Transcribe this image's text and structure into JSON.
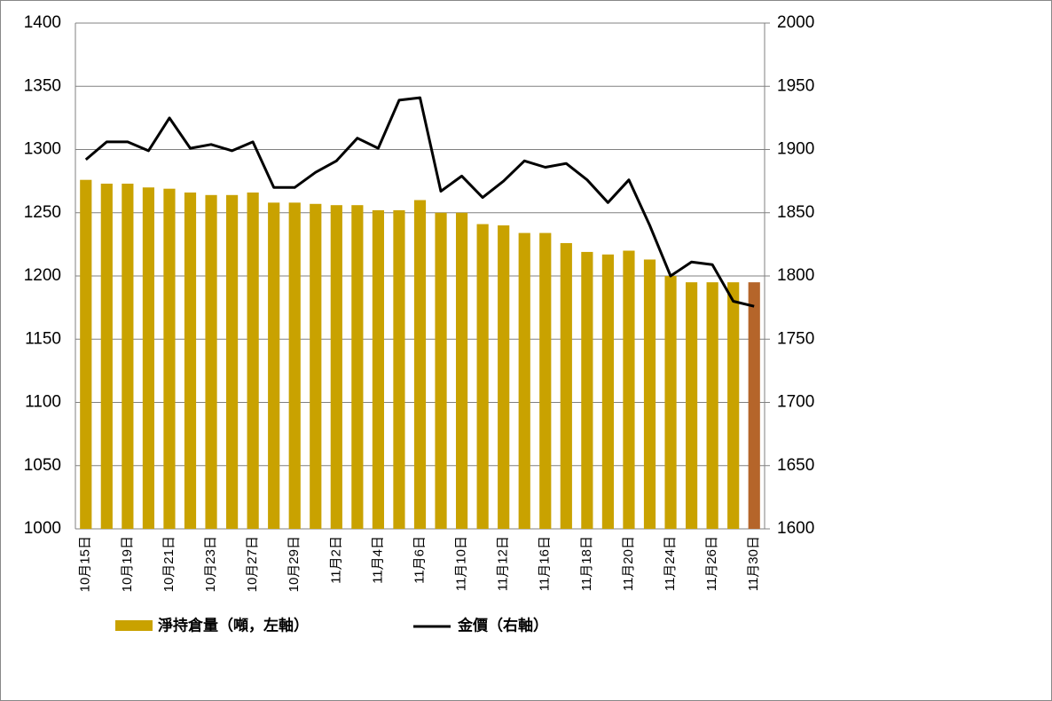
{
  "chart_data": {
    "type": "bar-line",
    "categories": [
      "10月15日",
      null,
      "10月19日",
      null,
      "10月21日",
      null,
      "10月23日",
      null,
      "10月27日",
      null,
      "10月29日",
      null,
      "11月2日",
      null,
      "11月4日",
      null,
      "11月6日",
      null,
      "11月10日",
      null,
      "11月12日",
      null,
      "11月16日",
      null,
      "11月18日",
      null,
      "11月20日",
      null,
      "11月24日",
      null,
      "11月26日",
      null,
      "11月30日"
    ],
    "series": [
      {
        "name": "淨持倉量（噸，左軸）",
        "color": "#c9a200",
        "last_color": "#b5652a",
        "values": [
          1276,
          1273,
          1273,
          1270,
          1269,
          1266,
          1264,
          1264,
          1266,
          1258,
          1258,
          1257,
          1256,
          1256,
          1252,
          1252,
          1260,
          1250,
          1250,
          1241,
          1240,
          1234,
          1234,
          1226,
          1219,
          1217,
          1220,
          1213,
          1200,
          1195,
          1195,
          1195,
          1195
        ]
      },
      {
        "name": "金價（右軸）",
        "color": "#000000",
        "axis": "y2",
        "values": [
          1892,
          1906,
          1906,
          1899,
          1925,
          1901,
          1904,
          1899,
          1906,
          1870,
          1870,
          1882,
          1891,
          1909,
          1901,
          1939,
          1941,
          1867,
          1879,
          1862,
          1875,
          1891,
          1886,
          1889,
          1876,
          1858,
          1876,
          1840,
          1800,
          1811,
          1809,
          1780,
          1776
        ]
      }
    ],
    "ylim": [
      1000,
      1400
    ],
    "yticks": [
      1000,
      1050,
      1100,
      1150,
      1200,
      1250,
      1300,
      1350,
      1400
    ],
    "y2lim": [
      1600,
      2000
    ],
    "y2ticks": [
      1600,
      1650,
      1700,
      1750,
      1800,
      1850,
      1900,
      1950,
      2000
    ],
    "grid": true
  }
}
